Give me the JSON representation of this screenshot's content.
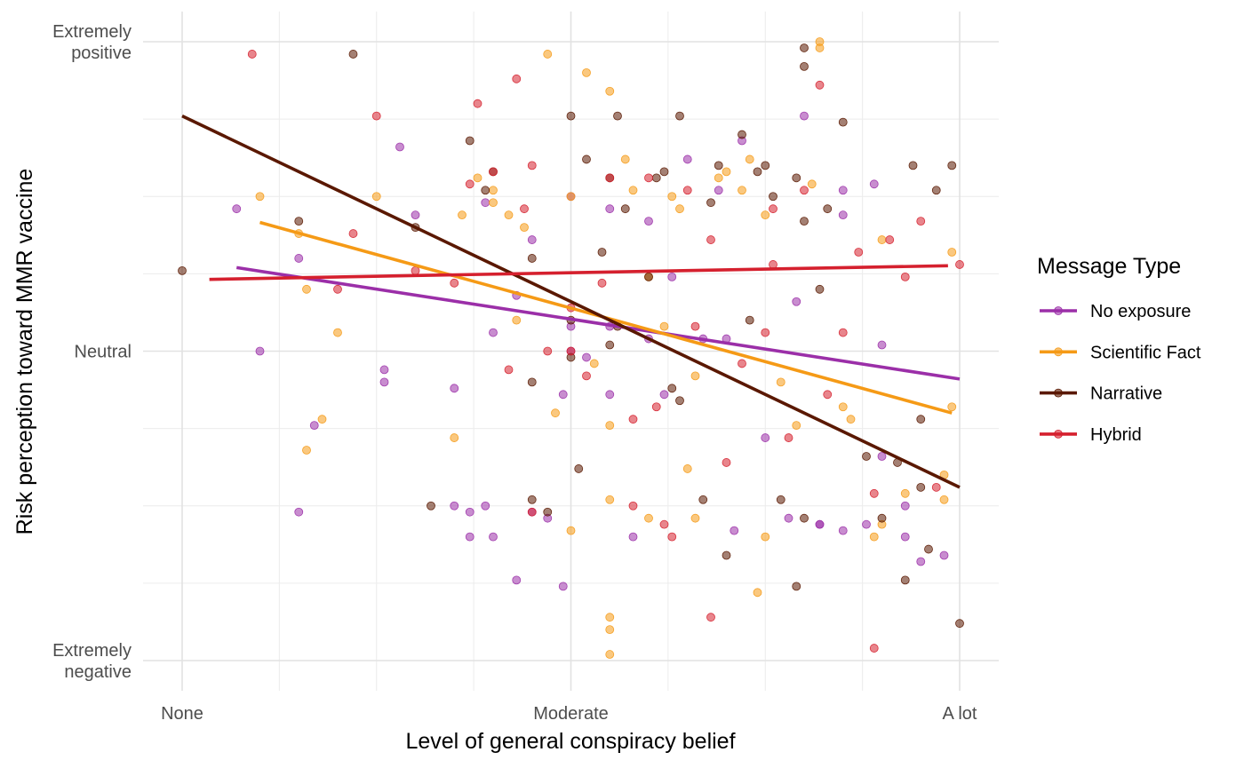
{
  "chart_data": {
    "type": "scatter",
    "title": "",
    "xlabel": "Level of general conspiracy belief",
    "ylabel": "Risk perception toward MMR vaccine",
    "xlim": [
      -0.35,
      10.35
    ],
    "ylim": [
      -0.35,
      10.35
    ],
    "x_major_ticks": [
      {
        "value": 0,
        "label": "None"
      },
      {
        "value": 5,
        "label": "Moderate"
      },
      {
        "value": 10,
        "label": "A lot"
      }
    ],
    "x_minor_ticks": [
      1.25,
      2.5,
      3.75,
      6.25,
      7.5,
      8.75
    ],
    "y_major_ticks": [
      {
        "value": 0,
        "label": [
          "Extremely",
          "negative"
        ]
      },
      {
        "value": 5,
        "label": [
          "Neutral"
        ]
      },
      {
        "value": 10,
        "label": [
          "Extremely",
          "positive"
        ]
      }
    ],
    "y_minor_ticks": [
      1.25,
      2.5,
      3.75,
      6.25,
      7.5,
      8.75
    ],
    "grid": true,
    "legend": {
      "title": "Message Type",
      "position": "right"
    },
    "series": [
      {
        "name": "No exposure",
        "color": "#9B2FA8",
        "trend": [
          [
            0.7,
            6.35
          ],
          [
            10.0,
            4.55
          ]
        ],
        "points": [
          [
            0.7,
            7.3
          ],
          [
            1.0,
            5.0
          ],
          [
            1.5,
            2.4
          ],
          [
            1.5,
            6.5
          ],
          [
            2.6,
            4.5
          ],
          [
            2.6,
            4.7
          ],
          [
            2.8,
            8.3
          ],
          [
            3.0,
            7.2
          ],
          [
            3.5,
            4.4
          ],
          [
            3.5,
            2.5
          ],
          [
            3.7,
            2.4
          ],
          [
            3.7,
            2.0
          ],
          [
            3.9,
            7.4
          ],
          [
            3.9,
            2.5
          ],
          [
            4.0,
            5.3
          ],
          [
            4.0,
            2.0
          ],
          [
            4.3,
            5.9
          ],
          [
            4.3,
            1.3
          ],
          [
            4.5,
            6.8
          ],
          [
            4.5,
            2.4
          ],
          [
            4.7,
            2.3
          ],
          [
            4.9,
            4.3
          ],
          [
            5.0,
            5.0
          ],
          [
            5.0,
            7.5
          ],
          [
            5.0,
            5.4
          ],
          [
            4.9,
            1.2
          ],
          [
            5.2,
            4.9
          ],
          [
            5.5,
            7.3
          ],
          [
            5.5,
            4.3
          ],
          [
            5.5,
            5.4
          ],
          [
            5.8,
            2.0
          ],
          [
            6.0,
            5.2
          ],
          [
            6.0,
            7.1
          ],
          [
            6.2,
            4.3
          ],
          [
            6.3,
            6.2
          ],
          [
            6.5,
            8.1
          ],
          [
            6.7,
            5.2
          ],
          [
            6.9,
            7.6
          ],
          [
            7.0,
            5.2
          ],
          [
            7.1,
            2.1
          ],
          [
            7.2,
            8.4
          ],
          [
            7.5,
            3.6
          ],
          [
            7.8,
            2.3
          ],
          [
            7.9,
            5.8
          ],
          [
            8.0,
            8.8
          ],
          [
            8.2,
            2.2
          ],
          [
            8.2,
            2.2
          ],
          [
            8.5,
            7.2
          ],
          [
            8.5,
            2.1
          ],
          [
            8.5,
            7.6
          ],
          [
            8.8,
            2.2
          ],
          [
            8.9,
            7.7
          ],
          [
            9.0,
            5.1
          ],
          [
            9.0,
            3.3
          ],
          [
            9.3,
            2.5
          ],
          [
            9.3,
            2.0
          ],
          [
            9.5,
            1.6
          ],
          [
            9.8,
            1.7
          ],
          [
            1.7,
            3.8
          ]
        ]
      },
      {
        "name": "Scientific Fact",
        "color": "#F59A16",
        "trend": [
          [
            1.0,
            7.08
          ],
          [
            9.9,
            4.0
          ]
        ],
        "points": [
          [
            1.0,
            7.5
          ],
          [
            1.5,
            6.9
          ],
          [
            1.6,
            6.0
          ],
          [
            1.6,
            3.4
          ],
          [
            1.8,
            3.9
          ],
          [
            2.0,
            5.3
          ],
          [
            2.5,
            7.5
          ],
          [
            3.5,
            3.6
          ],
          [
            3.6,
            7.2
          ],
          [
            3.8,
            7.8
          ],
          [
            4.0,
            7.4
          ],
          [
            4.0,
            7.6
          ],
          [
            4.2,
            7.2
          ],
          [
            4.4,
            7.0
          ],
          [
            4.7,
            9.8
          ],
          [
            4.8,
            4.0
          ],
          [
            5.0,
            7.5
          ],
          [
            5.0,
            2.1
          ],
          [
            5.2,
            9.5
          ],
          [
            5.3,
            4.8
          ],
          [
            5.5,
            9.2
          ],
          [
            5.5,
            3.8
          ],
          [
            5.7,
            8.1
          ],
          [
            5.8,
            7.6
          ],
          [
            6.0,
            6.2
          ],
          [
            6.2,
            5.4
          ],
          [
            6.3,
            7.5
          ],
          [
            6.4,
            7.3
          ],
          [
            6.6,
            4.6
          ],
          [
            6.6,
            2.3
          ],
          [
            6.9,
            7.8
          ],
          [
            7.0,
            7.9
          ],
          [
            7.2,
            7.6
          ],
          [
            7.3,
            8.1
          ],
          [
            7.5,
            2.0
          ],
          [
            7.5,
            7.2
          ],
          [
            7.7,
            4.5
          ],
          [
            7.9,
            3.8
          ],
          [
            8.1,
            7.7
          ],
          [
            8.5,
            4.1
          ],
          [
            8.6,
            3.9
          ],
          [
            9.0,
            6.8
          ],
          [
            9.3,
            2.7
          ],
          [
            9.9,
            6.6
          ],
          [
            9.9,
            4.1
          ],
          [
            9.8,
            3.0
          ],
          [
            9.8,
            2.6
          ],
          [
            5.5,
            2.6
          ],
          [
            6.0,
            2.3
          ],
          [
            6.5,
            3.1
          ],
          [
            9.0,
            2.2
          ],
          [
            7.4,
            1.1
          ],
          [
            4.3,
            5.5
          ],
          [
            5.5,
            0.5
          ],
          [
            5.5,
            0.7
          ],
          [
            5.5,
            0.1
          ],
          [
            8.2,
            10.0
          ],
          [
            8.2,
            9.9
          ],
          [
            8.9,
            2.0
          ]
        ]
      },
      {
        "name": "Narrative",
        "color": "#5A1800",
        "trend": [
          [
            0.0,
            8.8
          ],
          [
            10.0,
            2.8
          ]
        ],
        "points": [
          [
            0.0,
            6.3
          ],
          [
            1.5,
            7.1
          ],
          [
            2.2,
            9.8
          ],
          [
            3.0,
            7.0
          ],
          [
            3.2,
            2.5
          ],
          [
            3.9,
            7.6
          ],
          [
            4.0,
            7.9
          ],
          [
            4.5,
            6.5
          ],
          [
            4.5,
            2.6
          ],
          [
            4.7,
            2.4
          ],
          [
            5.0,
            5.5
          ],
          [
            5.0,
            4.9
          ],
          [
            5.2,
            8.1
          ],
          [
            5.4,
            6.6
          ],
          [
            5.5,
            7.8
          ],
          [
            5.6,
            5.4
          ],
          [
            5.7,
            7.3
          ],
          [
            6.0,
            6.2
          ],
          [
            6.1,
            7.8
          ],
          [
            6.2,
            7.9
          ],
          [
            6.3,
            4.4
          ],
          [
            6.4,
            4.2
          ],
          [
            6.7,
            2.6
          ],
          [
            6.8,
            7.4
          ],
          [
            6.9,
            8.0
          ],
          [
            7.0,
            1.7
          ],
          [
            7.3,
            5.5
          ],
          [
            7.4,
            7.9
          ],
          [
            7.6,
            7.5
          ],
          [
            7.7,
            2.6
          ],
          [
            7.9,
            7.8
          ],
          [
            8.0,
            7.1
          ],
          [
            8.0,
            2.3
          ],
          [
            8.2,
            6.0
          ],
          [
            8.3,
            7.3
          ],
          [
            8.8,
            3.3
          ],
          [
            9.0,
            2.3
          ],
          [
            9.2,
            3.2
          ],
          [
            9.4,
            8.0
          ],
          [
            9.5,
            3.9
          ],
          [
            9.5,
            2.8
          ],
          [
            9.7,
            7.6
          ],
          [
            10.0,
            0.6
          ],
          [
            9.9,
            8.0
          ],
          [
            8.0,
            9.6
          ],
          [
            8.0,
            9.9
          ],
          [
            8.5,
            8.7
          ],
          [
            7.5,
            8.0
          ],
          [
            6.4,
            8.8
          ],
          [
            5.6,
            8.8
          ],
          [
            5.0,
            8.8
          ],
          [
            5.5,
            5.1
          ],
          [
            7.2,
            8.5
          ],
          [
            7.9,
            1.2
          ],
          [
            9.3,
            1.3
          ],
          [
            9.6,
            1.8
          ],
          [
            5.1,
            3.1
          ],
          [
            3.7,
            8.4
          ],
          [
            4.5,
            4.5
          ]
        ]
      },
      {
        "name": "Hybrid",
        "color": "#D5202E",
        "trend": [
          [
            0.35,
            6.16
          ],
          [
            9.85,
            6.38
          ]
        ],
        "points": [
          [
            0.9,
            9.8
          ],
          [
            2.0,
            6.0
          ],
          [
            2.5,
            8.8
          ],
          [
            3.0,
            6.3
          ],
          [
            3.5,
            6.1
          ],
          [
            3.8,
            9.0
          ],
          [
            4.0,
            7.9
          ],
          [
            4.3,
            9.4
          ],
          [
            4.4,
            7.3
          ],
          [
            4.5,
            8.0
          ],
          [
            4.5,
            2.4
          ],
          [
            4.7,
            5.0
          ],
          [
            5.0,
            5.7
          ],
          [
            5.0,
            5.0
          ],
          [
            5.2,
            4.6
          ],
          [
            5.4,
            6.1
          ],
          [
            5.5,
            7.8
          ],
          [
            5.8,
            3.9
          ],
          [
            5.8,
            2.5
          ],
          [
            6.0,
            7.8
          ],
          [
            6.3,
            2.0
          ],
          [
            6.5,
            7.6
          ],
          [
            6.6,
            5.4
          ],
          [
            6.8,
            6.8
          ],
          [
            7.0,
            3.2
          ],
          [
            7.2,
            4.8
          ],
          [
            7.5,
            5.3
          ],
          [
            7.6,
            6.4
          ],
          [
            7.8,
            3.6
          ],
          [
            8.0,
            7.6
          ],
          [
            8.3,
            4.3
          ],
          [
            8.5,
            5.3
          ],
          [
            8.7,
            6.6
          ],
          [
            8.9,
            2.7
          ],
          [
            9.1,
            6.8
          ],
          [
            9.3,
            6.2
          ],
          [
            9.5,
            7.1
          ],
          [
            9.7,
            2.8
          ],
          [
            10.0,
            6.4
          ],
          [
            6.8,
            0.7
          ],
          [
            8.9,
            0.2
          ],
          [
            8.2,
            9.3
          ],
          [
            6.1,
            4.1
          ],
          [
            4.2,
            4.7
          ],
          [
            3.7,
            7.7
          ],
          [
            2.2,
            6.9
          ],
          [
            7.6,
            7.3
          ],
          [
            6.2,
            2.2
          ]
        ]
      }
    ]
  }
}
